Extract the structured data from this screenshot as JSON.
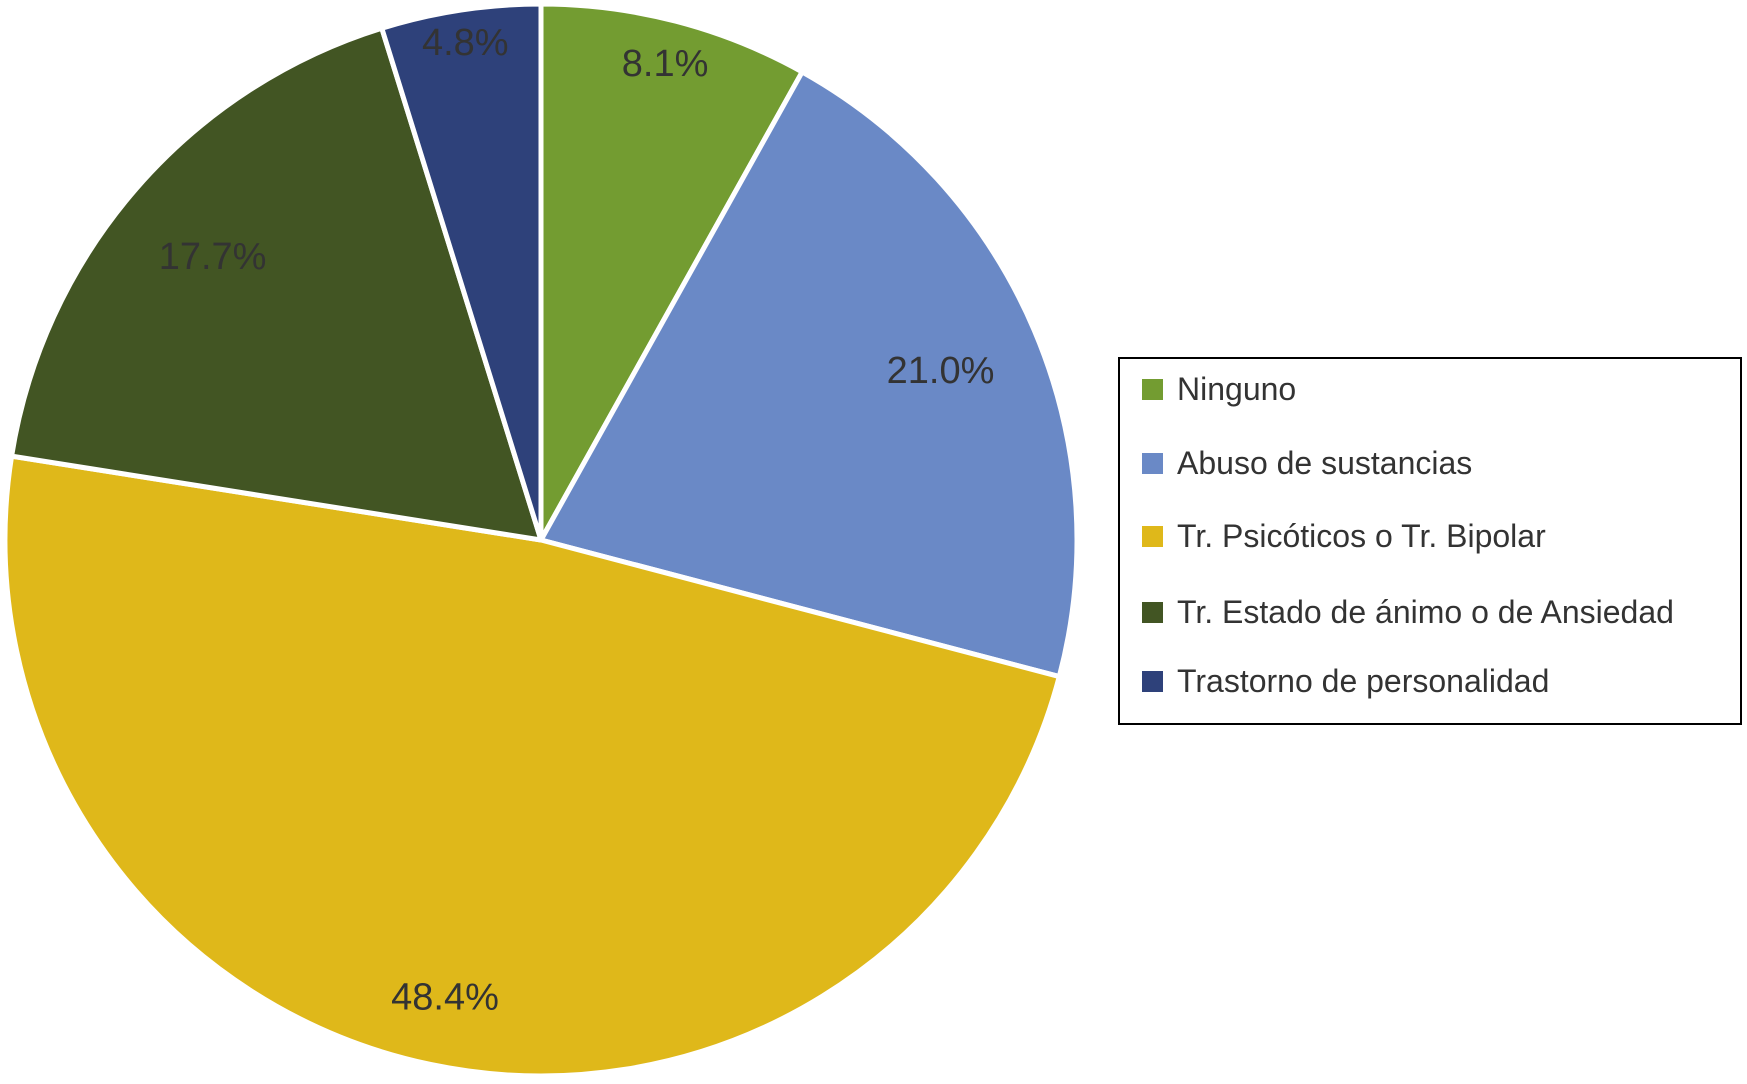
{
  "chart_data": {
    "type": "pie",
    "title": "",
    "legend_position": "right",
    "slices": [
      {
        "label": "Ninguno",
        "value": 8.1,
        "display": "8.1%",
        "color": "#739c31"
      },
      {
        "label": "Abuso de sustancias",
        "value": 21.0,
        "display": "21.0%",
        "color": "#6a89c6"
      },
      {
        "label": "Tr. Psicóticos o Tr. Bipolar",
        "value": 48.4,
        "display": "48.4%",
        "color": "#dfb81a"
      },
      {
        "label": "Tr. Estado de ánimo o de Ansiedad",
        "value": 17.7,
        "display": "17.7%",
        "color": "#425523"
      },
      {
        "label": "Trastorno de personalidad",
        "value": 4.8,
        "display": "4.8%",
        "color": "#2e417a"
      }
    ]
  }
}
